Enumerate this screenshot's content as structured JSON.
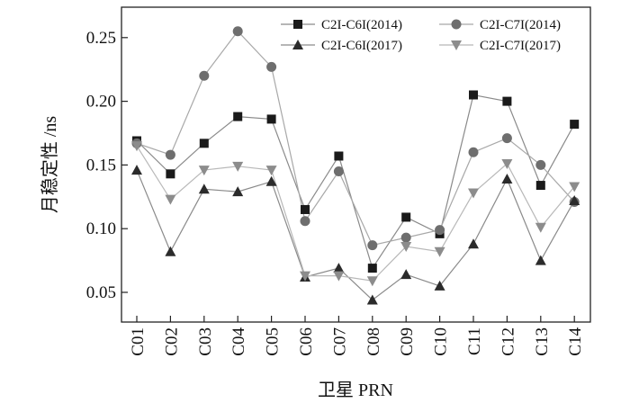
{
  "chart_data": {
    "type": "line",
    "title": "",
    "xlabel": "卫星 PRN",
    "ylabel": "月稳定性 /ns",
    "ylim": [
      0.03,
      0.275
    ],
    "yticks": [
      0.05,
      0.1,
      0.15,
      0.2,
      0.25
    ],
    "ytick_labels": [
      "0.05",
      "0.10",
      "0.15",
      "0.20",
      "0.25"
    ],
    "grid": false,
    "legend_position": "top-right",
    "categories": [
      "C01",
      "C02",
      "C03",
      "C04",
      "C05",
      "C06",
      "C07",
      "C08",
      "C09",
      "C10",
      "C11",
      "C12",
      "C13",
      "C14"
    ],
    "series": [
      {
        "name": "C2I-C6I(2014)",
        "marker": "square",
        "color": "#1a1a1a",
        "line_color": "#8a8a8a",
        "values": [
          0.169,
          0.143,
          0.167,
          0.188,
          0.186,
          0.115,
          0.157,
          0.069,
          0.109,
          0.096,
          0.205,
          0.2,
          0.134,
          0.182
        ]
      },
      {
        "name": "C2I-C7I(2014)",
        "marker": "circle",
        "color": "#6e6e6e",
        "line_color": "#a8a8a8",
        "values": [
          0.167,
          0.158,
          0.22,
          0.255,
          0.227,
          0.106,
          0.145,
          0.087,
          0.093,
          0.099,
          0.16,
          0.171,
          0.15,
          0.121
        ]
      },
      {
        "name": "C2I-C6I(2017)",
        "marker": "triangle-up",
        "color": "#2b2b2b",
        "line_color": "#8a8a8a",
        "values": [
          0.146,
          0.082,
          0.131,
          0.129,
          0.137,
          0.062,
          0.069,
          0.044,
          0.064,
          0.055,
          0.088,
          0.139,
          0.075,
          0.122
        ]
      },
      {
        "name": "C2I-C7I(2017)",
        "marker": "triangle-down",
        "color": "#8c8c8c",
        "line_color": "#b8b8b8",
        "values": [
          0.165,
          0.123,
          0.146,
          0.149,
          0.146,
          0.063,
          0.063,
          0.059,
          0.086,
          0.082,
          0.128,
          0.151,
          0.101,
          0.133
        ]
      }
    ]
  }
}
